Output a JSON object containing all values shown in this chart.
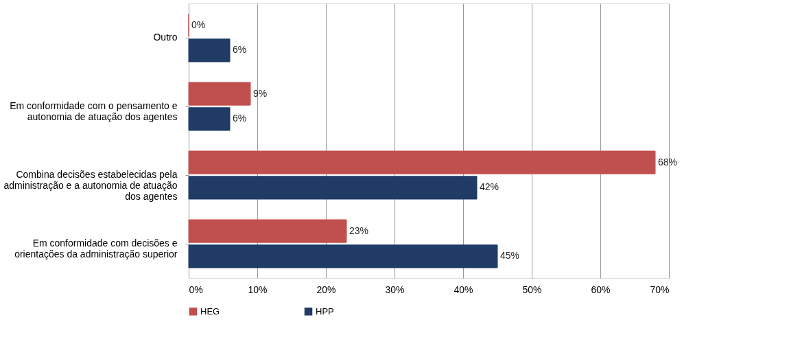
{
  "chart_data": {
    "type": "bar",
    "orientation": "horizontal",
    "categories": [
      "Outro",
      "Em conformidade com o pensamento e autonomia de atuação dos agentes",
      "Combina decisões estabelecidas pela administração e a autonomia de atuação dos agentes",
      "Em conformidade com decisões e orientações da administração superior"
    ],
    "series": [
      {
        "name": "HEG",
        "color": "#c0504d",
        "values": [
          0,
          9,
          68,
          23
        ],
        "value_labels": [
          "0%",
          "9%",
          "68%",
          "23%"
        ]
      },
      {
        "name": "HPP",
        "color": "#1f3b66",
        "values": [
          6,
          6,
          42,
          45
        ],
        "value_labels": [
          "6%",
          "6%",
          "42%",
          "45%"
        ]
      }
    ],
    "xlim": [
      0,
      70
    ],
    "xticks": [
      {
        "value": 0,
        "label": "0%"
      },
      {
        "value": 10,
        "label": "10%"
      },
      {
        "value": 20,
        "label": "20%"
      },
      {
        "value": 30,
        "label": "30%"
      },
      {
        "value": 40,
        "label": "40%"
      },
      {
        "value": 50,
        "label": "50%"
      },
      {
        "value": 60,
        "label": "60%"
      },
      {
        "value": 70,
        "label": "70%"
      }
    ],
    "grid": "x",
    "legend": "bottom"
  }
}
